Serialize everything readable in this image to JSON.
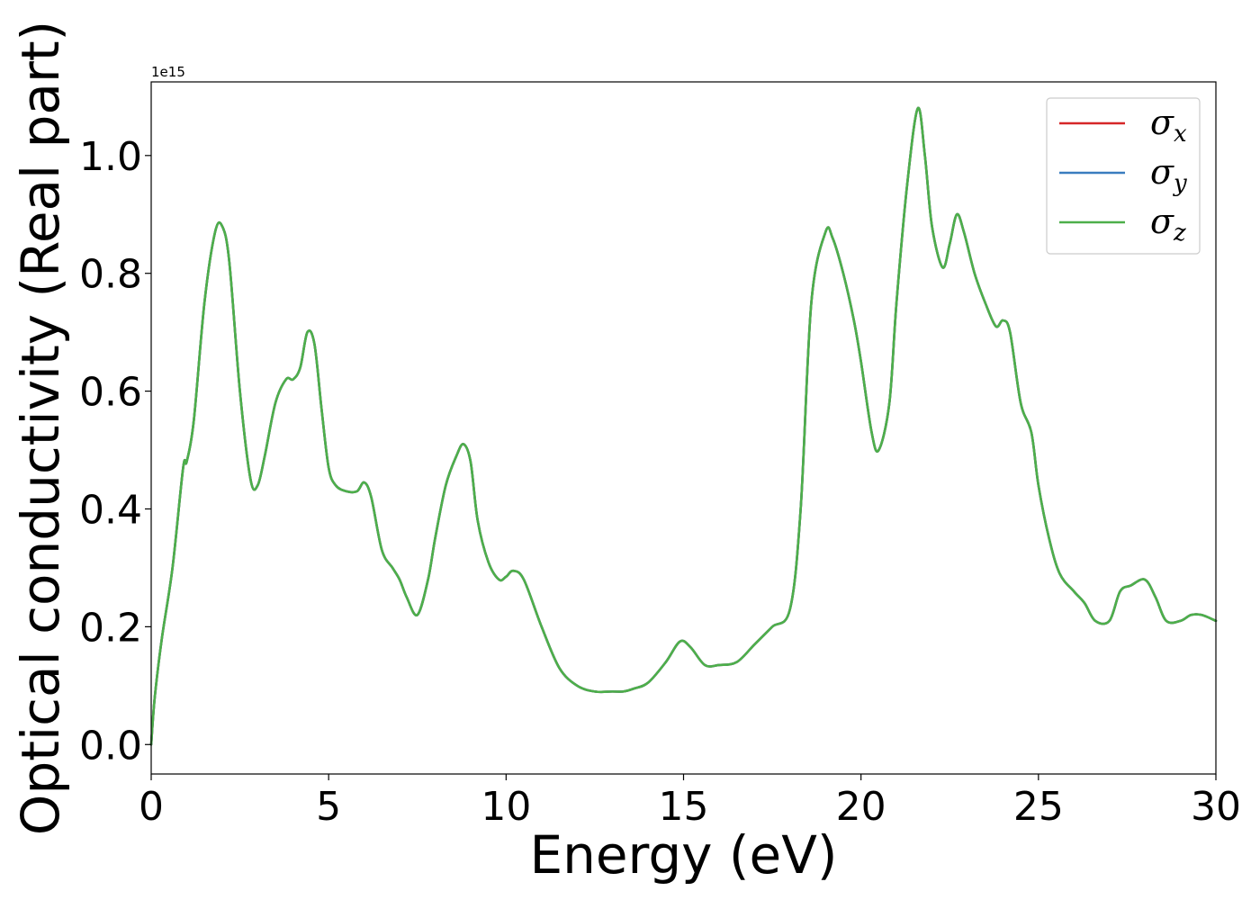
{
  "chart_data": {
    "type": "line",
    "title": "",
    "xlabel": "Energy (eV)",
    "ylabel": "Optical conductivity (Real part)",
    "y_offset_label": "1e15",
    "xlim": [
      0,
      30
    ],
    "ylim": [
      -0.05,
      1.125
    ],
    "x_ticks": [
      0,
      5,
      10,
      15,
      20,
      25,
      30
    ],
    "x_tick_labels": [
      "0",
      "5",
      "10",
      "15",
      "20",
      "25",
      "30"
    ],
    "y_ticks": [
      0.0,
      0.2,
      0.4,
      0.6,
      0.8,
      1.0
    ],
    "y_tick_labels": [
      "0.0",
      "0.2",
      "0.4",
      "0.6",
      "0.8",
      "1.0"
    ],
    "grid": false,
    "legend_position": "top-right",
    "legend": [
      {
        "symbol": "σ",
        "sub": "x",
        "color": "#d62728"
      },
      {
        "symbol": "σ",
        "sub": "y",
        "color": "#3a7dbf"
      },
      {
        "symbol": "σ",
        "sub": "z",
        "color": "#4daf4a"
      }
    ],
    "x": [
      0,
      0.1,
      0.3,
      0.6,
      0.9,
      1.0,
      1.2,
      1.5,
      1.8,
      2.0,
      2.2,
      2.5,
      2.8,
      3.0,
      3.2,
      3.5,
      3.8,
      4.0,
      4.2,
      4.4,
      4.6,
      4.8,
      5.0,
      5.2,
      5.5,
      5.8,
      6.0,
      6.2,
      6.5,
      6.8,
      7.0,
      7.2,
      7.5,
      7.8,
      8.0,
      8.3,
      8.6,
      8.8,
      9.0,
      9.2,
      9.5,
      9.8,
      10.0,
      10.2,
      10.5,
      11.0,
      11.5,
      12.0,
      12.5,
      13.0,
      13.3,
      13.6,
      14.0,
      14.5,
      14.9,
      15.2,
      15.6,
      16.0,
      16.5,
      17.0,
      17.5,
      18.0,
      18.3,
      18.6,
      19.0,
      19.2,
      19.5,
      19.8,
      20.0,
      20.3,
      20.5,
      20.8,
      21.0,
      21.3,
      21.6,
      21.8,
      22.0,
      22.3,
      22.5,
      22.7,
      22.9,
      23.2,
      23.5,
      23.8,
      24.0,
      24.2,
      24.5,
      24.8,
      25.0,
      25.3,
      25.6,
      26.0,
      26.3,
      26.6,
      27.0,
      27.3,
      27.6,
      28.0,
      28.3,
      28.6,
      29.0,
      29.3,
      29.6,
      30.0
    ],
    "series": [
      {
        "values": [
          0.0,
          0.08,
          0.18,
          0.3,
          0.47,
          0.48,
          0.55,
          0.75,
          0.87,
          0.88,
          0.82,
          0.6,
          0.45,
          0.44,
          0.49,
          0.58,
          0.62,
          0.62,
          0.64,
          0.7,
          0.68,
          0.57,
          0.47,
          0.44,
          0.43,
          0.43,
          0.445,
          0.42,
          0.33,
          0.3,
          0.28,
          0.25,
          0.22,
          0.28,
          0.35,
          0.44,
          0.49,
          0.51,
          0.48,
          0.38,
          0.31,
          0.28,
          0.285,
          0.295,
          0.28,
          0.2,
          0.13,
          0.1,
          0.09,
          0.09,
          0.09,
          0.095,
          0.105,
          0.14,
          0.175,
          0.165,
          0.135,
          0.135,
          0.14,
          0.17,
          0.2,
          0.23,
          0.4,
          0.75,
          0.87,
          0.86,
          0.8,
          0.72,
          0.65,
          0.53,
          0.5,
          0.58,
          0.75,
          0.95,
          1.08,
          1.0,
          0.88,
          0.81,
          0.85,
          0.9,
          0.87,
          0.8,
          0.75,
          0.71,
          0.72,
          0.7,
          0.58,
          0.53,
          0.44,
          0.35,
          0.29,
          0.26,
          0.24,
          0.21,
          0.21,
          0.26,
          0.27,
          0.28,
          0.25,
          0.21,
          0.21,
          0.22,
          0.22,
          0.21
        ]
      },
      {
        "values": [
          0.0,
          0.08,
          0.18,
          0.3,
          0.47,
          0.48,
          0.55,
          0.75,
          0.87,
          0.88,
          0.82,
          0.6,
          0.45,
          0.44,
          0.49,
          0.58,
          0.62,
          0.62,
          0.64,
          0.7,
          0.68,
          0.57,
          0.47,
          0.44,
          0.43,
          0.43,
          0.445,
          0.42,
          0.33,
          0.3,
          0.28,
          0.25,
          0.22,
          0.28,
          0.35,
          0.44,
          0.49,
          0.51,
          0.48,
          0.38,
          0.31,
          0.28,
          0.285,
          0.295,
          0.28,
          0.2,
          0.13,
          0.1,
          0.09,
          0.09,
          0.09,
          0.095,
          0.105,
          0.14,
          0.175,
          0.165,
          0.135,
          0.135,
          0.14,
          0.17,
          0.2,
          0.23,
          0.4,
          0.75,
          0.87,
          0.86,
          0.8,
          0.72,
          0.65,
          0.53,
          0.5,
          0.58,
          0.75,
          0.95,
          1.08,
          1.0,
          0.88,
          0.81,
          0.85,
          0.9,
          0.87,
          0.8,
          0.75,
          0.71,
          0.72,
          0.7,
          0.58,
          0.53,
          0.44,
          0.35,
          0.29,
          0.26,
          0.24,
          0.21,
          0.21,
          0.26,
          0.27,
          0.28,
          0.25,
          0.21,
          0.21,
          0.22,
          0.22,
          0.21
        ]
      },
      {
        "values": [
          0.0,
          0.08,
          0.18,
          0.3,
          0.47,
          0.48,
          0.55,
          0.75,
          0.87,
          0.88,
          0.82,
          0.6,
          0.45,
          0.44,
          0.49,
          0.58,
          0.62,
          0.62,
          0.64,
          0.7,
          0.68,
          0.57,
          0.47,
          0.44,
          0.43,
          0.43,
          0.445,
          0.42,
          0.33,
          0.3,
          0.28,
          0.25,
          0.22,
          0.28,
          0.35,
          0.44,
          0.49,
          0.51,
          0.48,
          0.38,
          0.31,
          0.28,
          0.285,
          0.295,
          0.28,
          0.2,
          0.13,
          0.1,
          0.09,
          0.09,
          0.09,
          0.095,
          0.105,
          0.14,
          0.175,
          0.165,
          0.135,
          0.135,
          0.14,
          0.17,
          0.2,
          0.23,
          0.4,
          0.75,
          0.87,
          0.86,
          0.8,
          0.72,
          0.65,
          0.53,
          0.5,
          0.58,
          0.75,
          0.95,
          1.08,
          1.0,
          0.88,
          0.81,
          0.85,
          0.9,
          0.87,
          0.8,
          0.75,
          0.71,
          0.72,
          0.7,
          0.58,
          0.53,
          0.44,
          0.35,
          0.29,
          0.26,
          0.24,
          0.21,
          0.21,
          0.26,
          0.27,
          0.28,
          0.25,
          0.21,
          0.21,
          0.22,
          0.22,
          0.21
        ]
      }
    ]
  }
}
